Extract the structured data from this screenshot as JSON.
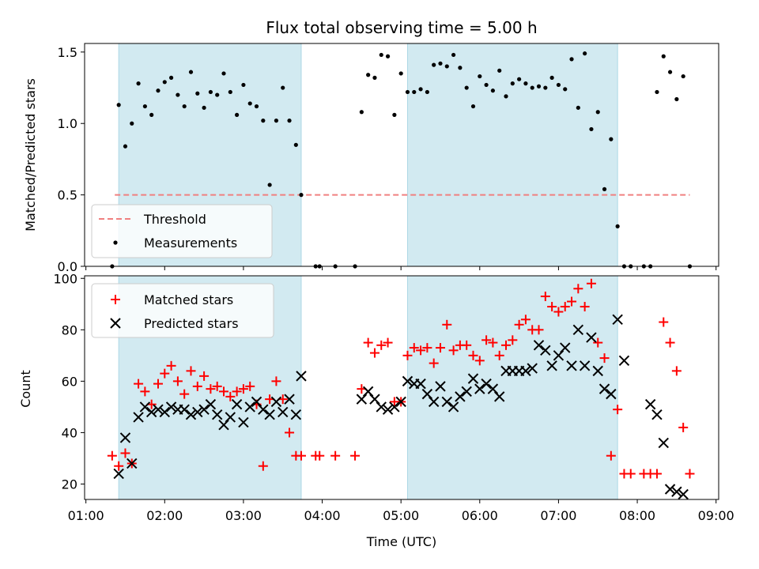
{
  "colors": {
    "shade": "#add8e6",
    "threshold": "#f08080",
    "measurements": "#000000",
    "matched": "#ff0000",
    "predicted": "#000000"
  },
  "chart_data": [
    {
      "type": "scatter",
      "title": "Flux total observing time = 5.00 h",
      "xlabel": "",
      "ylabel": "Matched/Predicted stars",
      "xlim": [
        "00:59",
        "09:02"
      ],
      "ylim": [
        0,
        1.56
      ],
      "yticks": [
        "0.0",
        "0.5",
        "1.0",
        "1.5"
      ],
      "grid": false,
      "legend_position": "lower-left",
      "shaded_intervals": [
        [
          "01:25",
          "03:44"
        ],
        [
          "05:05",
          "07:45"
        ]
      ],
      "threshold": {
        "name": "Threshold",
        "y": 0.5,
        "x_range": [
          "01:22",
          "08:40"
        ],
        "style": "dashed"
      },
      "series": [
        {
          "name": "Measurements",
          "marker": "dot",
          "x": [
            "01:20",
            "01:25",
            "01:30",
            "01:35",
            "01:40",
            "01:45",
            "01:50",
            "01:55",
            "02:00",
            "02:05",
            "02:10",
            "02:15",
            "02:20",
            "02:25",
            "02:30",
            "02:35",
            "02:40",
            "02:45",
            "02:50",
            "02:55",
            "03:00",
            "03:05",
            "03:10",
            "03:15",
            "03:20",
            "03:25",
            "03:30",
            "03:35",
            "03:40",
            "03:44",
            "03:55",
            "03:58",
            "04:10",
            "04:25",
            "04:30",
            "04:35",
            "04:40",
            "04:45",
            "04:50",
            "04:55",
            "05:00",
            "05:05",
            "05:10",
            "05:15",
            "05:20",
            "05:25",
            "05:30",
            "05:35",
            "05:40",
            "05:45",
            "05:50",
            "05:55",
            "06:00",
            "06:05",
            "06:10",
            "06:15",
            "06:20",
            "06:25",
            "06:30",
            "06:35",
            "06:40",
            "06:45",
            "06:50",
            "06:55",
            "07:00",
            "07:05",
            "07:10",
            "07:15",
            "07:20",
            "07:25",
            "07:30",
            "07:35",
            "07:40",
            "07:45",
            "07:50",
            "07:55",
            "08:05",
            "08:10",
            "08:15",
            "08:20",
            "08:25",
            "08:30",
            "08:35",
            "08:40"
          ],
          "y": [
            0.0,
            1.13,
            0.84,
            1.0,
            1.28,
            1.12,
            1.06,
            1.23,
            1.29,
            1.32,
            1.2,
            1.12,
            1.36,
            1.21,
            1.11,
            1.22,
            1.2,
            1.35,
            1.22,
            1.06,
            1.27,
            1.14,
            1.12,
            1.02,
            0.57,
            1.02,
            1.25,
            1.02,
            0.85,
            0.5,
            0.0,
            0.0,
            0.0,
            0.0,
            1.08,
            1.34,
            1.32,
            1.48,
            1.47,
            1.06,
            1.35,
            1.22,
            1.22,
            1.24,
            1.22,
            1.41,
            1.42,
            1.4,
            1.48,
            1.39,
            1.25,
            1.12,
            1.33,
            1.27,
            1.23,
            1.37,
            1.19,
            1.28,
            1.31,
            1.28,
            1.25,
            1.26,
            1.25,
            1.32,
            1.27,
            1.24,
            1.45,
            1.11,
            1.49,
            0.96,
            1.08,
            0.54,
            0.89,
            0.28,
            0.0,
            0.0,
            0.0,
            0.0,
            1.22,
            1.47,
            1.36,
            1.17,
            1.33,
            0.0
          ]
        }
      ]
    },
    {
      "type": "scatter",
      "title": "",
      "xlabel": "Time (UTC)",
      "ylabel": "Count",
      "xlim": [
        "00:59",
        "09:02"
      ],
      "ylim": [
        14,
        101
      ],
      "xticks": [
        "01:00",
        "02:00",
        "03:00",
        "04:00",
        "05:00",
        "06:00",
        "07:00",
        "08:00",
        "09:00"
      ],
      "yticks": [
        "20",
        "40",
        "60",
        "80",
        "100"
      ],
      "grid": false,
      "legend_position": "upper-left",
      "shaded_intervals": [
        [
          "01:25",
          "03:44"
        ],
        [
          "05:05",
          "07:45"
        ]
      ],
      "series": [
        {
          "name": "Matched stars",
          "marker": "plus",
          "x": [
            "01:20",
            "01:25",
            "01:30",
            "01:35",
            "01:40",
            "01:45",
            "01:50",
            "01:55",
            "02:00",
            "02:05",
            "02:10",
            "02:15",
            "02:20",
            "02:25",
            "02:30",
            "02:35",
            "02:40",
            "02:45",
            "02:50",
            "02:55",
            "03:00",
            "03:05",
            "03:10",
            "03:15",
            "03:20",
            "03:25",
            "03:30",
            "03:35",
            "03:40",
            "03:44",
            "03:55",
            "03:58",
            "04:10",
            "04:25",
            "04:30",
            "04:35",
            "04:40",
            "04:45",
            "04:50",
            "04:55",
            "05:00",
            "05:05",
            "05:10",
            "05:15",
            "05:20",
            "05:25",
            "05:30",
            "05:35",
            "05:40",
            "05:45",
            "05:50",
            "05:55",
            "06:00",
            "06:05",
            "06:10",
            "06:15",
            "06:20",
            "06:25",
            "06:30",
            "06:35",
            "06:40",
            "06:45",
            "06:50",
            "06:55",
            "07:00",
            "07:05",
            "07:10",
            "07:15",
            "07:20",
            "07:25",
            "07:30",
            "07:35",
            "07:40",
            "07:45",
            "07:50",
            "07:55",
            "08:05",
            "08:10",
            "08:15",
            "08:20",
            "08:25",
            "08:30",
            "08:35",
            "08:40"
          ],
          "y": [
            31,
            27,
            32,
            28,
            59,
            56,
            51,
            59,
            63,
            66,
            60,
            55,
            64,
            58,
            62,
            57,
            58,
            56,
            54,
            56,
            57,
            58,
            51,
            27,
            53,
            60,
            53,
            40,
            31,
            31,
            31,
            31,
            31,
            31,
            57,
            75,
            71,
            74,
            75,
            52,
            52,
            70,
            73,
            72,
            73,
            67,
            73,
            82,
            72,
            74,
            74,
            70,
            68,
            76,
            75,
            70,
            74,
            76,
            82,
            84,
            80,
            80,
            93,
            89,
            87,
            89,
            91,
            96,
            89,
            98,
            75,
            69,
            31,
            49,
            24,
            24,
            24,
            24,
            24,
            83,
            75,
            64,
            42,
            24
          ]
        },
        {
          "name": "Predicted stars",
          "marker": "x",
          "x": [
            "01:25",
            "01:30",
            "01:35",
            "01:40",
            "01:45",
            "01:50",
            "01:55",
            "02:00",
            "02:05",
            "02:10",
            "02:15",
            "02:20",
            "02:25",
            "02:30",
            "02:35",
            "02:40",
            "02:45",
            "02:50",
            "02:55",
            "03:00",
            "03:05",
            "03:10",
            "03:15",
            "03:20",
            "03:25",
            "03:30",
            "03:35",
            "03:40",
            "03:44",
            "04:30",
            "04:35",
            "04:40",
            "04:45",
            "04:50",
            "04:55",
            "05:00",
            "05:05",
            "05:10",
            "05:15",
            "05:20",
            "05:25",
            "05:30",
            "05:35",
            "05:40",
            "05:45",
            "05:50",
            "05:55",
            "06:00",
            "06:05",
            "06:10",
            "06:15",
            "06:20",
            "06:25",
            "06:30",
            "06:35",
            "06:40",
            "06:45",
            "06:50",
            "06:55",
            "07:00",
            "07:05",
            "07:10",
            "07:15",
            "07:20",
            "07:25",
            "07:30",
            "07:35",
            "07:40",
            "07:45",
            "07:50",
            "08:10",
            "08:15",
            "08:20",
            "08:25",
            "08:30",
            "08:35"
          ],
          "y": [
            24,
            38,
            28,
            46,
            50,
            48,
            49,
            48,
            50,
            49,
            49,
            47,
            48,
            49,
            51,
            47,
            43,
            46,
            51,
            44,
            50,
            52,
            49,
            47,
            52,
            48,
            53,
            47,
            62,
            53,
            56,
            53,
            50,
            49,
            50,
            52,
            60,
            59,
            59,
            55,
            52,
            58,
            52,
            50,
            54,
            56,
            61,
            57,
            59,
            57,
            54,
            64,
            64,
            64,
            64,
            65,
            74,
            72,
            66,
            70,
            73,
            66,
            80,
            66,
            77,
            64,
            57,
            55,
            84,
            68,
            51,
            47,
            36,
            18,
            17,
            16
          ]
        }
      ]
    }
  ]
}
